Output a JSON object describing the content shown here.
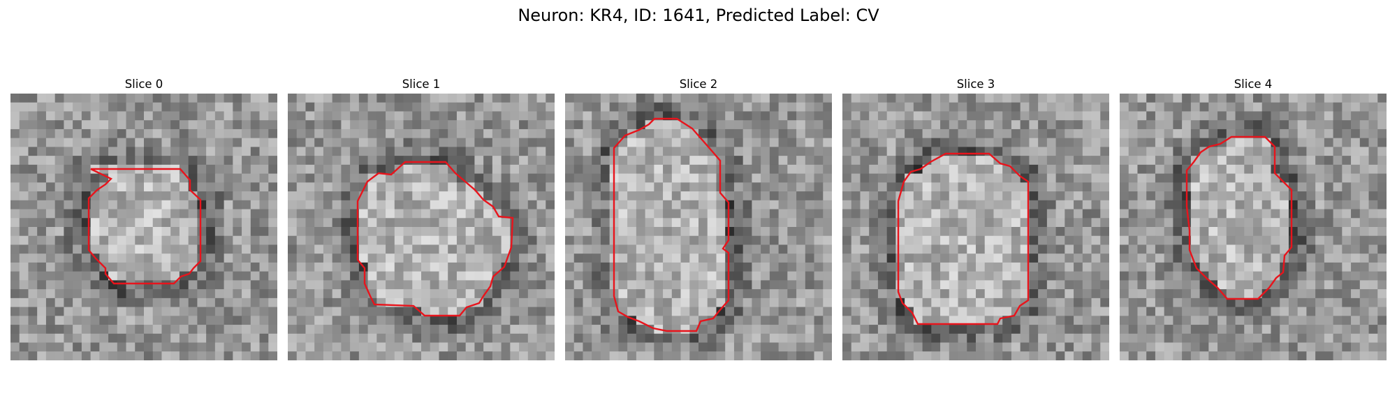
{
  "figure": {
    "title": "Neuron: KR4, ID: 1641, Predicted Label: CV"
  },
  "contour_color": "#e8141c",
  "panels": [
    {
      "title": "Slice 0",
      "image": "grayscale microscopy patch of a cell body surrounded by a dark ring on the left",
      "contour": [
        [
          115,
          108
        ],
        [
          243,
          108
        ],
        [
          257,
          124
        ],
        [
          257,
          138
        ],
        [
          272,
          152
        ],
        [
          272,
          240
        ],
        [
          262,
          250
        ],
        [
          256,
          258
        ],
        [
          244,
          262
        ],
        [
          234,
          272
        ],
        [
          148,
          272
        ],
        [
          136,
          258
        ],
        [
          136,
          250
        ],
        [
          122,
          236
        ],
        [
          112,
          224
        ],
        [
          112,
          150
        ],
        [
          124,
          138
        ],
        [
          136,
          130
        ],
        [
          144,
          122
        ]
      ]
    },
    {
      "title": "Slice 1",
      "image": "grayscale microscopy patch of a cell body with dark boundary on left and right",
      "contour": [
        [
          168,
          98
        ],
        [
          226,
          98
        ],
        [
          240,
          114
        ],
        [
          254,
          126
        ],
        [
          268,
          138
        ],
        [
          280,
          152
        ],
        [
          294,
          162
        ],
        [
          302,
          176
        ],
        [
          322,
          178
        ],
        [
          320,
          220
        ],
        [
          310,
          248
        ],
        [
          294,
          262
        ],
        [
          290,
          276
        ],
        [
          280,
          290
        ],
        [
          274,
          300
        ],
        [
          256,
          306
        ],
        [
          246,
          318
        ],
        [
          196,
          318
        ],
        [
          180,
          304
        ],
        [
          124,
          302
        ],
        [
          118,
          290
        ],
        [
          110,
          272
        ],
        [
          110,
          250
        ],
        [
          100,
          238
        ],
        [
          100,
          154
        ],
        [
          114,
          126
        ],
        [
          130,
          114
        ],
        [
          148,
          116
        ]
      ]
    },
    {
      "title": "Slice 2",
      "image": "grayscale microscopy patch of a large elongated cell body",
      "contour": [
        [
          128,
          36
        ],
        [
          160,
          36
        ],
        [
          182,
          50
        ],
        [
          196,
          66
        ],
        [
          210,
          82
        ],
        [
          222,
          96
        ],
        [
          222,
          142
        ],
        [
          234,
          156
        ],
        [
          234,
          210
        ],
        [
          226,
          222
        ],
        [
          234,
          228
        ],
        [
          234,
          296
        ],
        [
          220,
          312
        ],
        [
          212,
          322
        ],
        [
          194,
          326
        ],
        [
          188,
          340
        ],
        [
          146,
          340
        ],
        [
          126,
          336
        ],
        [
          106,
          326
        ],
        [
          90,
          320
        ],
        [
          76,
          312
        ],
        [
          70,
          290
        ],
        [
          70,
          78
        ],
        [
          86,
          60
        ],
        [
          106,
          52
        ],
        [
          120,
          44
        ]
      ]
    },
    {
      "title": "Slice 3",
      "image": "grayscale microscopy patch of a cell body with dark region on upper right",
      "contour": [
        [
          148,
          86
        ],
        [
          210,
          86
        ],
        [
          226,
          100
        ],
        [
          240,
          104
        ],
        [
          254,
          118
        ],
        [
          266,
          126
        ],
        [
          266,
          296
        ],
        [
          254,
          304
        ],
        [
          246,
          318
        ],
        [
          226,
          322
        ],
        [
          222,
          330
        ],
        [
          108,
          330
        ],
        [
          100,
          314
        ],
        [
          86,
          300
        ],
        [
          80,
          284
        ],
        [
          80,
          154
        ],
        [
          88,
          126
        ],
        [
          98,
          112
        ],
        [
          112,
          108
        ],
        [
          126,
          98
        ]
      ]
    },
    {
      "title": "Slice 4",
      "image": "grayscale microscopy patch of a cell body with dark crescent along the bottom",
      "contour": [
        [
          160,
          62
        ],
        [
          208,
          62
        ],
        [
          222,
          76
        ],
        [
          222,
          114
        ],
        [
          246,
          138
        ],
        [
          246,
          220
        ],
        [
          236,
          232
        ],
        [
          234,
          256
        ],
        [
          224,
          264
        ],
        [
          214,
          278
        ],
        [
          198,
          294
        ],
        [
          154,
          294
        ],
        [
          140,
          278
        ],
        [
          124,
          264
        ],
        [
          110,
          250
        ],
        [
          100,
          224
        ],
        [
          100,
          196
        ],
        [
          96,
          162
        ],
        [
          96,
          110
        ],
        [
          106,
          98
        ],
        [
          116,
          84
        ],
        [
          128,
          76
        ],
        [
          144,
          72
        ]
      ]
    }
  ]
}
